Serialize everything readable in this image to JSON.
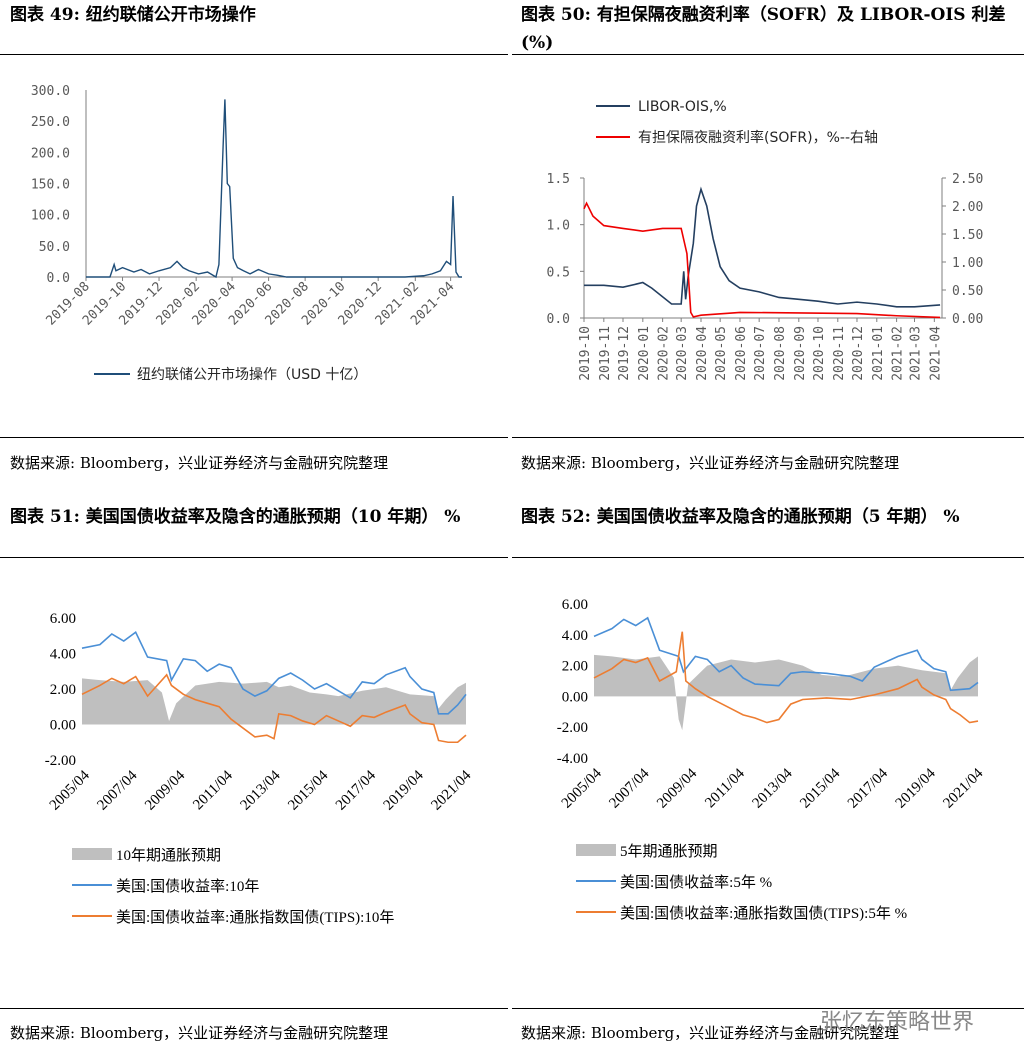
{
  "panels": {
    "p49": {
      "title": "图表 49:  纽约联储公开市场操作",
      "source": "数据来源:  Bloomberg，兴业证券经济与金融研究院整理"
    },
    "p50": {
      "title": "图表 50:  有担保隔夜融资利率（SOFR）及 LIBOR-OIS 利差(%)",
      "source": "数据来源:  Bloomberg，兴业证券经济与金融研究院整理"
    },
    "p51": {
      "title": "图表 51:  美国国债收益率及隐含的通胀预期（10 年期）  %",
      "source": "数据来源:  Bloomberg，兴业证券经济与金融研究院整理"
    },
    "p52": {
      "title": "图表 52:  美国国债收益率及隐含的通胀预期（5 年期）  %",
      "source": "数据来源:  Bloomberg，兴业证券经济与金融研究院整理"
    }
  },
  "watermark": "张忆东策略世界",
  "chart_data": [
    {
      "id": "c49",
      "type": "line",
      "title": "",
      "xlabel": "",
      "ylabel": "",
      "x_ticks": [
        "2019-08",
        "2019-10",
        "2019-12",
        "2020-02",
        "2020-04",
        "2020-06",
        "2020-08",
        "2020-10",
        "2020-12",
        "2021-02",
        "2021-04"
      ],
      "y_ticks": [
        "0.0",
        "50.0",
        "100.0",
        "150.0",
        "200.0",
        "250.0",
        "300.0"
      ],
      "ylim": [
        0,
        300
      ],
      "xlim": [
        "2019-08-01",
        "2021-04-20"
      ],
      "grid": false,
      "legend_position": "bottom",
      "series": [
        {
          "name": "纽约联储公开市场操作（USD 十亿）",
          "color": "#1f4e79",
          "x": [
            "2019-08-01",
            "2019-09-10",
            "2019-09-17",
            "2019-09-20",
            "2019-10-01",
            "2019-10-20",
            "2019-11-01",
            "2019-11-15",
            "2019-12-01",
            "2019-12-20",
            "2019-12-31",
            "2020-01-10",
            "2020-01-20",
            "2020-02-05",
            "2020-02-20",
            "2020-03-05",
            "2020-03-10",
            "2020-03-17",
            "2020-03-20",
            "2020-03-24",
            "2020-03-28",
            "2020-04-03",
            "2020-04-10",
            "2020-04-20",
            "2020-05-01",
            "2020-05-15",
            "2020-06-01",
            "2020-06-15",
            "2020-07-01",
            "2020-09-01",
            "2020-12-01",
            "2021-01-15",
            "2021-02-15",
            "2021-03-01",
            "2021-03-15",
            "2021-03-25",
            "2021-04-01",
            "2021-04-05",
            "2021-04-10",
            "2021-04-15",
            "2021-04-20"
          ],
          "y": [
            0,
            0,
            20,
            10,
            15,
            8,
            12,
            5,
            10,
            15,
            25,
            15,
            10,
            5,
            8,
            0,
            20,
            210,
            285,
            150,
            145,
            30,
            15,
            10,
            5,
            12,
            5,
            3,
            0,
            0,
            0,
            0,
            2,
            5,
            10,
            25,
            20,
            130,
            8,
            0,
            0
          ]
        }
      ]
    },
    {
      "id": "c50",
      "type": "line",
      "title": "",
      "xlabel": "",
      "ylabel": "",
      "x_ticks": [
        "2019-10",
        "2019-11",
        "2019-12",
        "2020-01",
        "2020-02",
        "2020-03",
        "2020-04",
        "2020-05",
        "2020-06",
        "2020-07",
        "2020-08",
        "2020-09",
        "2020-10",
        "2020-11",
        "2020-12",
        "2021-01",
        "2021-02",
        "2021-03",
        "2021-04"
      ],
      "y_ticks_left": [
        "0.0",
        "0.5",
        "1.0",
        "1.5"
      ],
      "y_ticks_right": [
        "0.00",
        "0.50",
        "1.00",
        "1.50",
        "2.00",
        "2.50"
      ],
      "ylim_left": [
        0,
        1.5
      ],
      "ylim_right": [
        0,
        2.5
      ],
      "grid": false,
      "legend_position": "top-left",
      "series": [
        {
          "name": "LIBOR-OIS,%",
          "color": "#243f60",
          "axis": "left",
          "x": [
            "2019-10-01",
            "2019-11-01",
            "2019-12-01",
            "2020-01-01",
            "2020-01-15",
            "2020-02-15",
            "2020-03-01",
            "2020-03-05",
            "2020-03-08",
            "2020-03-12",
            "2020-03-20",
            "2020-03-25",
            "2020-04-01",
            "2020-04-10",
            "2020-04-20",
            "2020-05-01",
            "2020-05-15",
            "2020-06-01",
            "2020-07-01",
            "2020-08-01",
            "2020-09-01",
            "2020-10-01",
            "2020-11-01",
            "2020-12-01",
            "2021-01-01",
            "2021-02-01",
            "2021-03-01",
            "2021-04-10"
          ],
          "y": [
            0.35,
            0.35,
            0.33,
            0.38,
            0.32,
            0.15,
            0.15,
            0.5,
            0.2,
            0.45,
            0.8,
            1.2,
            1.38,
            1.2,
            0.85,
            0.55,
            0.4,
            0.32,
            0.28,
            0.22,
            0.2,
            0.18,
            0.15,
            0.17,
            0.15,
            0.12,
            0.12,
            0.14
          ]
        },
        {
          "name": "有担保隔夜融资利率(SOFR)，%--右轴",
          "color": "#ee0000",
          "axis": "right",
          "x": [
            "2019-10-01",
            "2019-10-05",
            "2019-10-15",
            "2019-11-01",
            "2019-12-01",
            "2020-01-01",
            "2020-02-01",
            "2020-03-01",
            "2020-03-10",
            "2020-03-16",
            "2020-03-20",
            "2020-04-01",
            "2020-06-01",
            "2020-09-01",
            "2020-12-01",
            "2021-02-01",
            "2021-04-10"
          ],
          "y": [
            1.95,
            2.05,
            1.82,
            1.65,
            1.6,
            1.55,
            1.6,
            1.6,
            1.15,
            0.1,
            0.02,
            0.05,
            0.1,
            0.09,
            0.08,
            0.04,
            0.01
          ]
        }
      ]
    },
    {
      "id": "c51",
      "type": "line",
      "title": "",
      "xlabel": "",
      "ylabel": "",
      "x_ticks": [
        "2005/04",
        "2007/04",
        "2009/04",
        "2011/04",
        "2013/04",
        "2015/04",
        "2017/04",
        "2019/04",
        "2021/04"
      ],
      "y_ticks": [
        "-2.00",
        "0.00",
        "2.00",
        "4.00",
        "6.00"
      ],
      "ylim": [
        -2,
        6
      ],
      "xlim": [
        2005.25,
        2021.35
      ],
      "grid": false,
      "legend_position": "bottom",
      "series": [
        {
          "name": "10年期通胀预期",
          "color": "#bfbfbf",
          "style": "area",
          "x": [
            2005.25,
            2006,
            2007,
            2008,
            2008.6,
            2008.9,
            2009.2,
            2010,
            2011,
            2012,
            2013,
            2013.5,
            2014,
            2014.8,
            2015.5,
            2016,
            2017,
            2018,
            2019,
            2020,
            2020.2,
            2020.5,
            2021,
            2021.35
          ],
          "y": [
            2.6,
            2.5,
            2.4,
            2.5,
            1.8,
            0.2,
            1.2,
            2.2,
            2.4,
            2.3,
            2.4,
            2.1,
            2.2,
            1.8,
            1.7,
            1.6,
            1.9,
            2.1,
            1.7,
            1.6,
            0.9,
            1.4,
            2.1,
            2.35
          ]
        },
        {
          "name": "美国:国债收益率:10年",
          "color": "#4a8fd6",
          "x": [
            2005.25,
            2006,
            2006.5,
            2007,
            2007.5,
            2008,
            2008.8,
            2009,
            2009.5,
            2010,
            2010.5,
            2011,
            2011.5,
            2012,
            2012.5,
            2013,
            2013.5,
            2014,
            2014.5,
            2015,
            2015.5,
            2016,
            2016.5,
            2017,
            2017.5,
            2018,
            2018.8,
            2019,
            2019.5,
            2020,
            2020.2,
            2020.6,
            2021,
            2021.35
          ],
          "y": [
            4.3,
            4.5,
            5.1,
            4.7,
            5.2,
            3.8,
            3.6,
            2.5,
            3.7,
            3.6,
            3.0,
            3.4,
            3.2,
            2.0,
            1.6,
            1.9,
            2.6,
            2.9,
            2.5,
            2.0,
            2.3,
            1.9,
            1.5,
            2.4,
            2.3,
            2.8,
            3.2,
            2.7,
            2.0,
            1.8,
            0.6,
            0.6,
            1.1,
            1.7
          ]
        },
        {
          "name": "美国:国债收益率:通胀指数国债(TIPS):10年",
          "color": "#ed7d31",
          "x": [
            2005.25,
            2006,
            2006.5,
            2007,
            2007.5,
            2008,
            2008.8,
            2009,
            2009.5,
            2010,
            2010.5,
            2011,
            2011.5,
            2012,
            2012.5,
            2013,
            2013.3,
            2013.5,
            2014,
            2014.5,
            2015,
            2015.5,
            2016,
            2016.5,
            2017,
            2017.5,
            2018,
            2018.8,
            2019,
            2019.5,
            2020,
            2020.2,
            2020.6,
            2021,
            2021.35
          ],
          "y": [
            1.7,
            2.2,
            2.6,
            2.3,
            2.7,
            1.6,
            2.8,
            2.2,
            1.7,
            1.4,
            1.2,
            1.0,
            0.3,
            -0.2,
            -0.7,
            -0.6,
            -0.8,
            0.6,
            0.5,
            0.2,
            0.0,
            0.5,
            0.2,
            -0.1,
            0.5,
            0.4,
            0.7,
            1.1,
            0.6,
            0.1,
            0.0,
            -0.9,
            -1.0,
            -1.0,
            -0.6
          ]
        }
      ]
    },
    {
      "id": "c52",
      "type": "line",
      "title": "",
      "xlabel": "",
      "ylabel": "",
      "x_ticks": [
        "2005/04",
        "2007/04",
        "2009/04",
        "2011/04",
        "2013/04",
        "2015/04",
        "2017/04",
        "2019/04",
        "2021/04"
      ],
      "y_ticks": [
        "-4.00",
        "-2.00",
        "0.00",
        "2.00",
        "4.00",
        "6.00"
      ],
      "ylim": [
        -4,
        6
      ],
      "xlim": [
        2005.25,
        2021.35
      ],
      "grid": false,
      "legend_position": "bottom",
      "series": [
        {
          "name": "5年期通胀预期",
          "color": "#bfbfbf",
          "style": "area",
          "x": [
            2005.25,
            2006,
            2007,
            2008,
            2008.6,
            2008.8,
            2008.95,
            2009.2,
            2010,
            2011,
            2012,
            2013,
            2014,
            2014.8,
            2015.5,
            2016,
            2017,
            2018,
            2019,
            2020,
            2020.2,
            2020.5,
            2021,
            2021.35
          ],
          "y": [
            2.7,
            2.6,
            2.4,
            2.6,
            1.2,
            -1.5,
            -2.2,
            0.8,
            2.0,
            2.4,
            2.2,
            2.4,
            2.0,
            1.4,
            1.3,
            1.4,
            1.8,
            2.0,
            1.7,
            1.5,
            0.4,
            1.2,
            2.2,
            2.6
          ]
        },
        {
          "name": "美国:国债收益率:5年 %",
          "color": "#4a8fd6",
          "x": [
            2005.25,
            2006,
            2006.5,
            2007,
            2007.5,
            2008,
            2008.8,
            2009,
            2009.5,
            2010,
            2010.5,
            2011,
            2011.5,
            2012,
            2013,
            2013.5,
            2014,
            2015,
            2016,
            2016.5,
            2017,
            2018,
            2018.8,
            2019,
            2019.5,
            2020,
            2020.2,
            2021,
            2021.35
          ],
          "y": [
            3.9,
            4.4,
            5.0,
            4.6,
            5.1,
            3.0,
            2.6,
            1.6,
            2.6,
            2.4,
            1.6,
            2.0,
            1.2,
            0.8,
            0.7,
            1.5,
            1.6,
            1.5,
            1.3,
            1.0,
            1.9,
            2.6,
            3.0,
            2.4,
            1.8,
            1.6,
            0.4,
            0.5,
            0.9
          ]
        },
        {
          "name": "美国:国债收益率:通胀指数国债(TIPS):5年 %",
          "color": "#ed7d31",
          "x": [
            2005.25,
            2006,
            2006.5,
            2007,
            2007.5,
            2008,
            2008.7,
            2008.95,
            2009.1,
            2009.5,
            2010,
            2010.5,
            2011,
            2011.5,
            2012,
            2012.5,
            2013,
            2013.5,
            2014,
            2015,
            2016,
            2017,
            2018,
            2018.8,
            2019,
            2019.5,
            2020,
            2020.2,
            2020.6,
            2021,
            2021.35
          ],
          "y": [
            1.2,
            1.8,
            2.4,
            2.2,
            2.5,
            1.0,
            1.6,
            4.2,
            1.0,
            0.5,
            0.0,
            -0.4,
            -0.8,
            -1.2,
            -1.4,
            -1.7,
            -1.5,
            -0.5,
            -0.2,
            -0.1,
            -0.2,
            0.1,
            0.5,
            1.1,
            0.6,
            0.1,
            -0.2,
            -0.8,
            -1.2,
            -1.7,
            -1.6
          ]
        }
      ]
    }
  ]
}
